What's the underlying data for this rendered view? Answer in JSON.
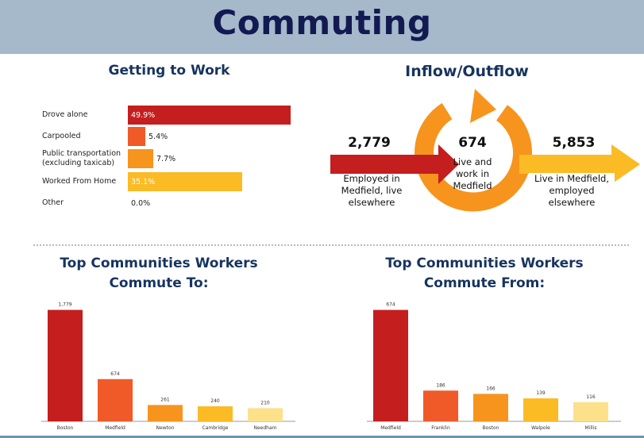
{
  "header": {
    "title": "Commuting"
  },
  "getting_to_work": {
    "title": "Getting to Work",
    "rows": [
      {
        "label": "Drove alone",
        "value": 49.9,
        "text": "49.9%",
        "color": "#c41e1e"
      },
      {
        "label": "Carpooled",
        "value": 5.4,
        "text": "5.4%",
        "color": "#f05a28"
      },
      {
        "label": "Public transportation (excluding taxicab)",
        "value": 7.7,
        "text": "7.7%",
        "color": "#f7941d"
      },
      {
        "label": "Worked From Home",
        "value": 35.1,
        "text": "35.1%",
        "color": "#fbbb25"
      },
      {
        "label": "Other",
        "value": 0.0,
        "text": "0.0%",
        "color": "#fde08a"
      }
    ]
  },
  "inflow_outflow": {
    "title": "Inflow/Outflow",
    "inflow": {
      "number": "2,779",
      "text": "Employed in Medfield, live elsewhere",
      "color": "#c41e1e"
    },
    "local": {
      "number": "674",
      "text": "Live and work in Medfield",
      "color": "#f7941d"
    },
    "outflow": {
      "number": "5,853",
      "text": "Live in Medfield, employed elsewhere",
      "color": "#fbbb25"
    }
  },
  "commute_to": {
    "title_line1": "Top Communities Workers",
    "title_line2": "Commute To:",
    "chart_data": {
      "type": "bar",
      "categories": [
        "Boston",
        "Medfield",
        "Newton",
        "Cambridge",
        "Needham"
      ],
      "values": [
        1779,
        674,
        261,
        240,
        210
      ],
      "value_labels": [
        "1,779",
        "674",
        "261",
        "240",
        "210"
      ],
      "colors": [
        "#c41e1e",
        "#f05a28",
        "#f7941d",
        "#fbbb25",
        "#fde08a"
      ],
      "ylim": [
        0,
        1900
      ]
    }
  },
  "commute_from": {
    "title_line1": "Top Communities Workers",
    "title_line2": "Commute From:",
    "chart_data": {
      "type": "bar",
      "categories": [
        "Medfield",
        "Franklin",
        "Boston",
        "Walpole",
        "Millis"
      ],
      "values": [
        674,
        186,
        166,
        139,
        116
      ],
      "value_labels": [
        "674",
        "186",
        "166",
        "139",
        "116"
      ],
      "colors": [
        "#c41e1e",
        "#f05a28",
        "#f7941d",
        "#fbbb25",
        "#fde08a"
      ],
      "ylim": [
        0,
        720
      ]
    }
  }
}
